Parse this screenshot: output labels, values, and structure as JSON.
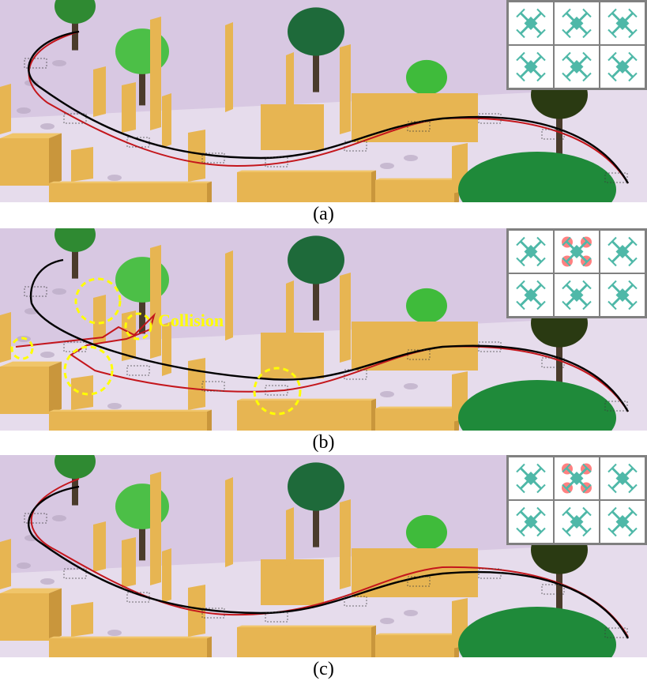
{
  "panels": [
    {
      "id": "a",
      "caption": "(a)",
      "failed_motor_index": null
    },
    {
      "id": "b",
      "caption": "(b)",
      "failed_motor_index": 1,
      "annotation": "Collision"
    },
    {
      "id": "c",
      "caption": "(c)",
      "failed_motor_index": 1
    }
  ],
  "colors": {
    "sky": "#d8c8e2",
    "ground": "#e6dcec",
    "wall": "#e7b552",
    "wall_side": "#c9963c",
    "reference_path": "#000000",
    "actual_path": "#c4161c",
    "collision_marker": "#ffff00",
    "drone_icon": "#4fb8a8",
    "motor_fault": "#ff6b6b"
  }
}
